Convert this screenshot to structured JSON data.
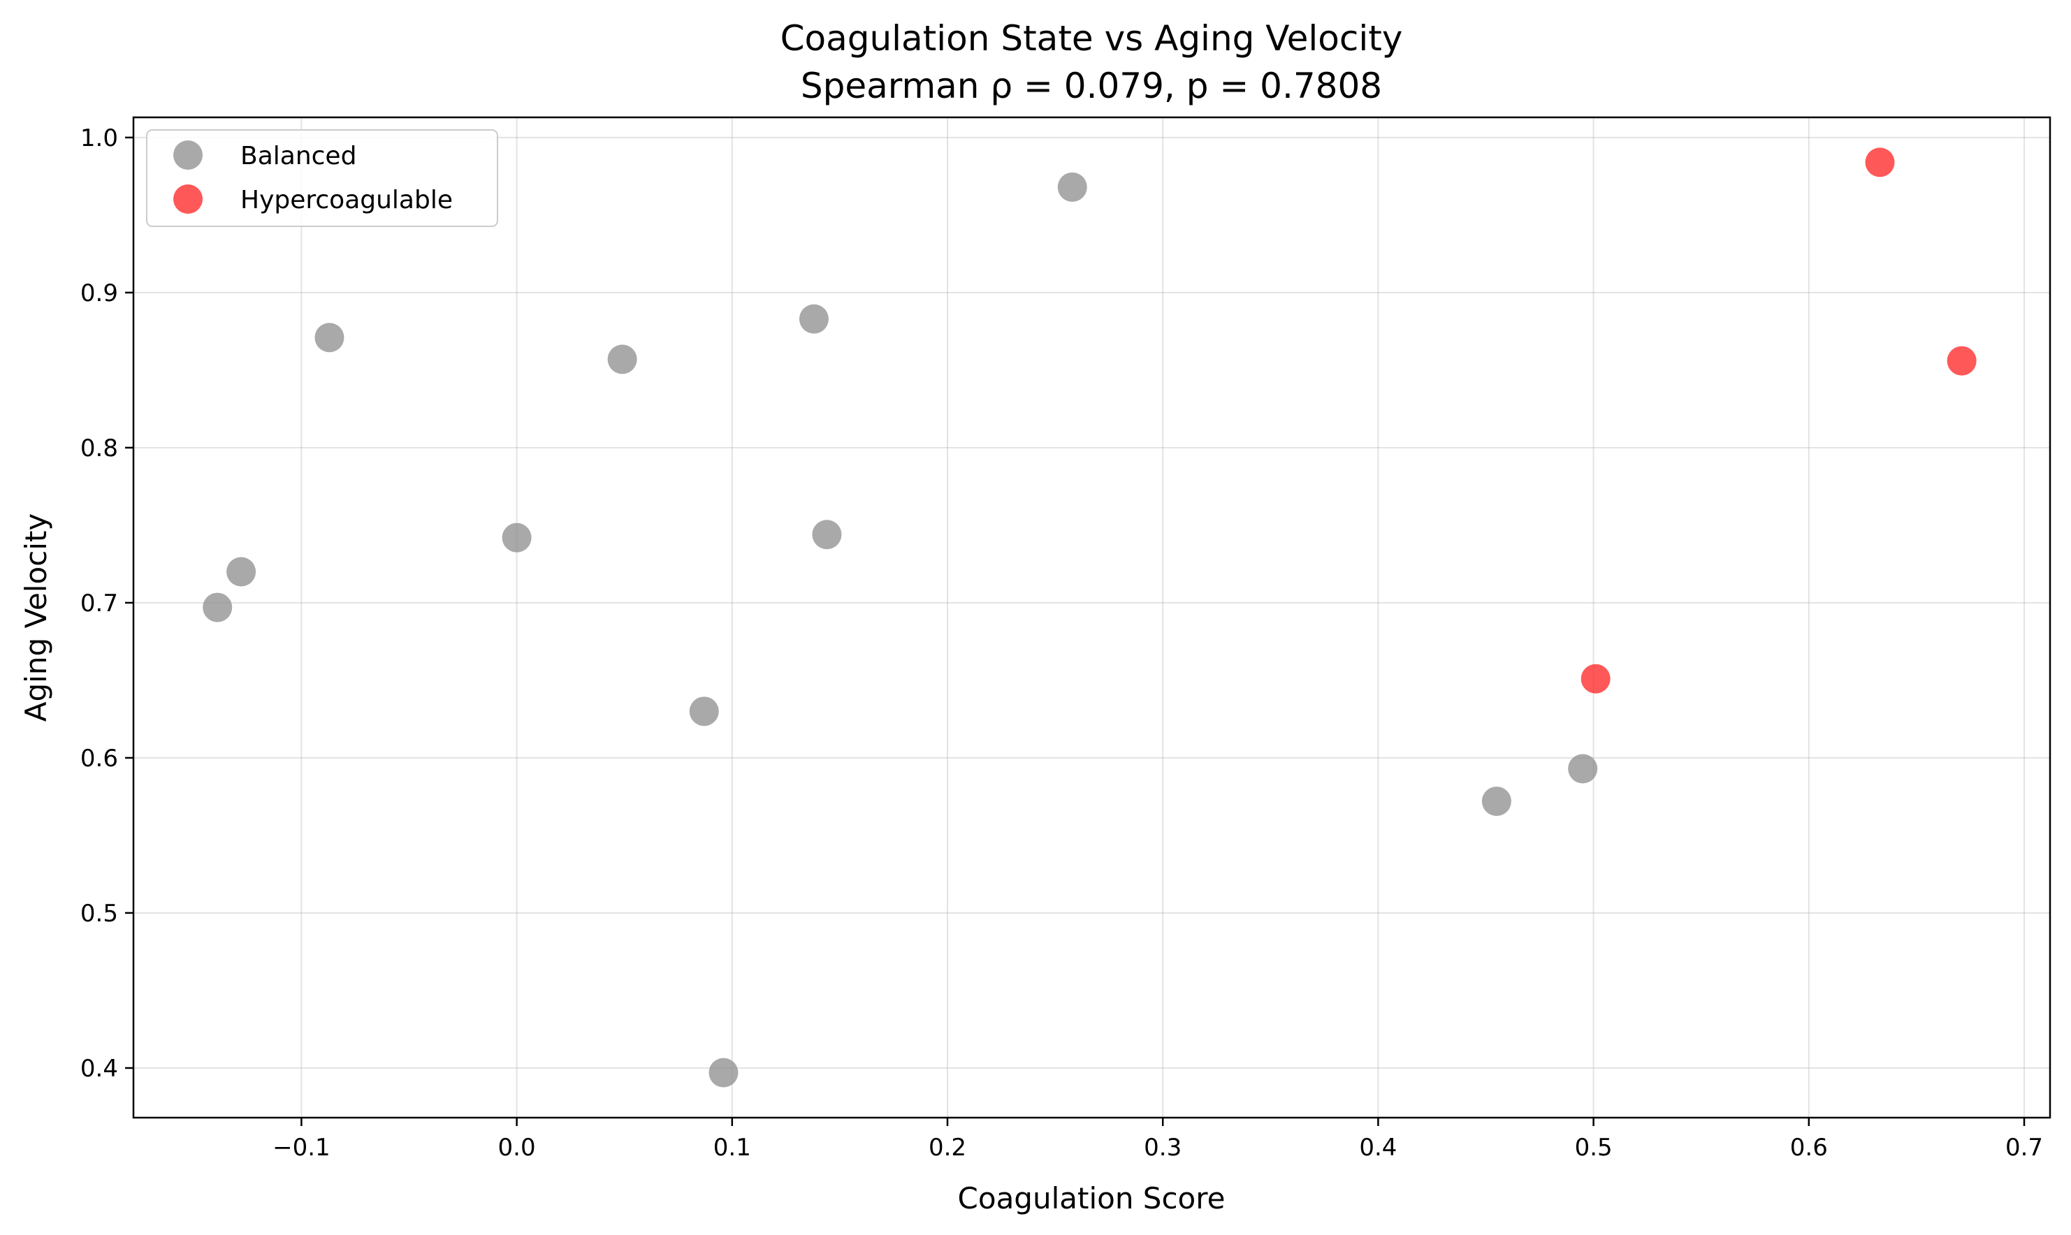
{
  "chart_data": {
    "type": "scatter",
    "title": "Coagulation State vs Aging Velocity",
    "subtitle": "Spearman ρ = 0.079, p = 0.7808",
    "xlabel": "Coagulation Score",
    "ylabel": "Aging Velocity",
    "xlim": [
      -0.178,
      0.712
    ],
    "ylim": [
      0.368,
      1.013
    ],
    "xticks": [
      -0.1,
      0.0,
      0.1,
      0.2,
      0.3,
      0.4,
      0.5,
      0.6,
      0.7
    ],
    "xtick_labels": [
      "−0.1",
      "0.0",
      "0.1",
      "0.2",
      "0.3",
      "0.4",
      "0.5",
      "0.6",
      "0.7"
    ],
    "yticks": [
      0.4,
      0.5,
      0.6,
      0.7,
      0.8,
      0.9,
      1.0
    ],
    "ytick_labels": [
      "0.4",
      "0.5",
      "0.6",
      "0.7",
      "0.8",
      "0.9",
      "1.0"
    ],
    "grid": true,
    "legend_position": "top-left",
    "series": [
      {
        "name": "Balanced",
        "color": "#8c8c8c",
        "points": [
          [
            -0.139,
            0.697
          ],
          [
            -0.128,
            0.72
          ],
          [
            -0.087,
            0.871
          ],
          [
            0.0,
            0.742
          ],
          [
            0.049,
            0.857
          ],
          [
            0.087,
            0.63
          ],
          [
            0.096,
            0.397
          ],
          [
            0.138,
            0.883
          ],
          [
            0.144,
            0.744
          ],
          [
            0.258,
            0.968
          ],
          [
            0.455,
            0.572
          ],
          [
            0.495,
            0.593
          ]
        ]
      },
      {
        "name": "Hypercoagulable",
        "color": "#ff2020",
        "points": [
          [
            0.501,
            0.651
          ],
          [
            0.633,
            0.984
          ],
          [
            0.671,
            0.856
          ]
        ]
      }
    ]
  }
}
